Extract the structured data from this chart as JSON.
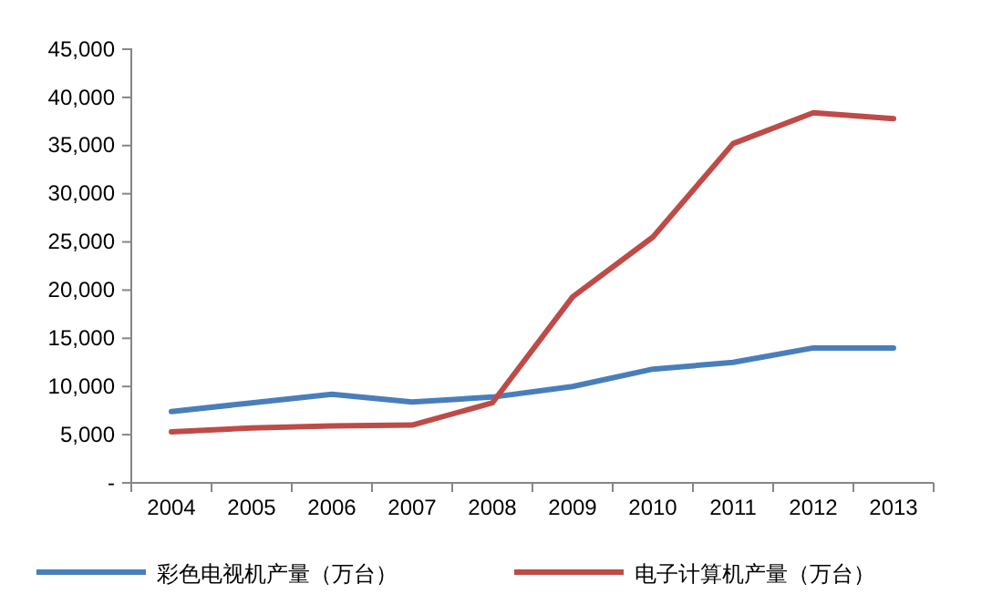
{
  "chart_data": {
    "type": "line",
    "categories": [
      "2004",
      "2005",
      "2006",
      "2007",
      "2008",
      "2009",
      "2010",
      "2011",
      "2012",
      "2013"
    ],
    "ylim": [
      0,
      45000
    ],
    "yticks": [
      {
        "value": 0,
        "label": "-"
      },
      {
        "value": 5000,
        "label": "5,000"
      },
      {
        "value": 10000,
        "label": "10,000"
      },
      {
        "value": 15000,
        "label": "15,000"
      },
      {
        "value": 20000,
        "label": "20,000"
      },
      {
        "value": 25000,
        "label": "25,000"
      },
      {
        "value": 30000,
        "label": "30,000"
      },
      {
        "value": 35000,
        "label": "35,000"
      },
      {
        "value": 40000,
        "label": "40,000"
      },
      {
        "value": 45000,
        "label": "45,000"
      }
    ],
    "legend": "bottom",
    "line_style": "solid",
    "series": [
      {
        "name": "彩色电视机产量（万台）",
        "color": "#4a7ebb",
        "values": [
          7400,
          8300,
          9200,
          8400,
          8900,
          10000,
          11800,
          12500,
          14000,
          14000
        ]
      },
      {
        "name": "电子计算机产量（万台）",
        "color": "#be4b48",
        "values": [
          5300,
          5700,
          5900,
          6000,
          8300,
          19300,
          25500,
          35200,
          38400,
          37800
        ]
      }
    ]
  }
}
